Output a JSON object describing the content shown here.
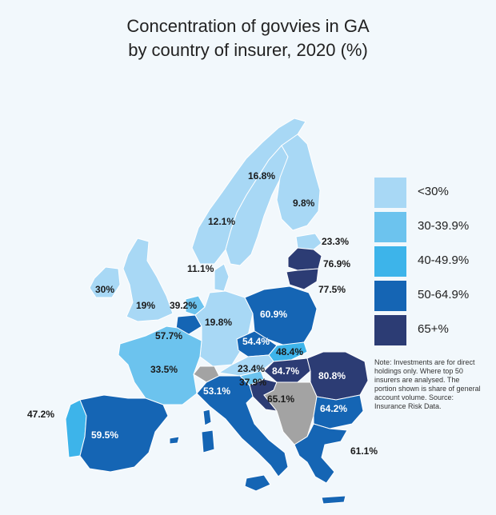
{
  "title": {
    "line1": "Concentration of govvies in GA",
    "line2": "by country of insurer, 2020 (%)"
  },
  "legend": [
    {
      "label": "<30%",
      "color": "#a8d8f5"
    },
    {
      "label": "30-39.9%",
      "color": "#6cc3ee"
    },
    {
      "label": "40-49.9%",
      "color": "#3db4ea"
    },
    {
      "label": "50-64.9%",
      "color": "#1565b4"
    },
    {
      "label": "65+%",
      "color": "#2c3c74"
    }
  ],
  "note": "Note: Investments are for direct holdings only. Where top 50 insurers are analysed. The portion shown is share of general account volume. Source: Insurance Risk Data.",
  "colors": {
    "no_data": "#a3a3a3",
    "background": "#f2f8fc"
  },
  "countries": [
    {
      "name": "Norway/Sweden",
      "label": "16.8%",
      "value": 16.8
    },
    {
      "name": "Finland",
      "label": "9.8%",
      "value": 9.8
    },
    {
      "name": "Sweden",
      "label": "12.1%",
      "value": 12.1
    },
    {
      "name": "Estonia",
      "label": "23.3%",
      "value": 23.3
    },
    {
      "name": "Latvia",
      "label": "76.9%",
      "value": 76.9
    },
    {
      "name": "Lithuania",
      "label": "77.5%",
      "value": 77.5
    },
    {
      "name": "Denmark",
      "label": "11.1%",
      "value": 11.1
    },
    {
      "name": "Ireland",
      "label": "30%",
      "value": 30
    },
    {
      "name": "United Kingdom",
      "label": "19%",
      "value": 19
    },
    {
      "name": "Netherlands",
      "label": "39.2%",
      "value": 39.2
    },
    {
      "name": "Belgium",
      "label": "57.7%",
      "value": 57.7
    },
    {
      "name": "Germany",
      "label": "19.8%",
      "value": 19.8
    },
    {
      "name": "Poland",
      "label": "60.9%",
      "value": 60.9
    },
    {
      "name": "Czechia",
      "label": "54.4%",
      "value": 54.4
    },
    {
      "name": "Slovakia",
      "label": "48.4%",
      "value": 48.4
    },
    {
      "name": "France",
      "label": "33.5%",
      "value": 33.5
    },
    {
      "name": "Austria",
      "label": "23.4%",
      "value": 23.4
    },
    {
      "name": "Hungary",
      "label": "84.7%",
      "value": 84.7
    },
    {
      "name": "Romania",
      "label": "80.8%",
      "value": 80.8
    },
    {
      "name": "Slovenia",
      "label": "37.9%",
      "value": 37.9
    },
    {
      "name": "Croatia",
      "label": "65.1%",
      "value": 65.1
    },
    {
      "name": "Italy",
      "label": "53.1%",
      "value": 53.1
    },
    {
      "name": "Bulgaria",
      "label": "64.2%",
      "value": 64.2
    },
    {
      "name": "Portugal",
      "label": "47.2%",
      "value": 47.2
    },
    {
      "name": "Spain",
      "label": "59.5%",
      "value": 59.5
    },
    {
      "name": "Greece",
      "label": "61.1%",
      "value": 61.1
    }
  ]
}
